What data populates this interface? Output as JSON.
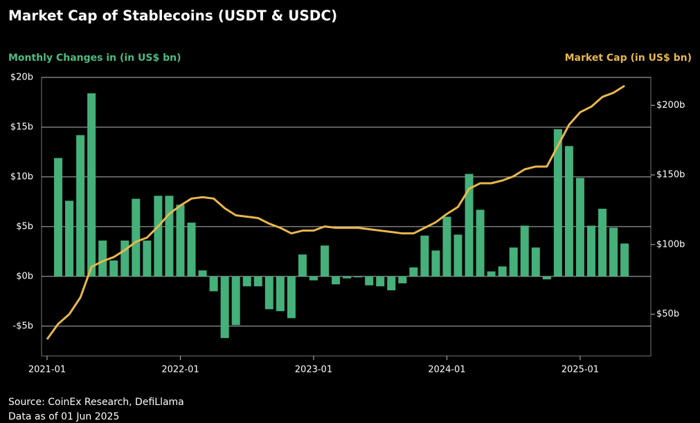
{
  "chart_data": {
    "type": "bar-line",
    "title": "Market Cap of Stablecoins (USDT & USDC)",
    "y_label": "Monthly Changes in (in US$ bn)",
    "y2_label": "Market Cap (in US$ bn)",
    "source": "Source: CoinEx Research, DefiLlama",
    "note": "Data as of 01 Jun 2025",
    "x": [
      "2021-01",
      "2021-02",
      "2021-03",
      "2021-04",
      "2021-05",
      "2021-06",
      "2021-07",
      "2021-08",
      "2021-09",
      "2021-10",
      "2021-11",
      "2021-12",
      "2022-01",
      "2022-02",
      "2022-03",
      "2022-04",
      "2022-05",
      "2022-06",
      "2022-07",
      "2022-08",
      "2022-09",
      "2022-10",
      "2022-11",
      "2022-12",
      "2023-01",
      "2023-02",
      "2023-03",
      "2023-04",
      "2023-05",
      "2023-06",
      "2023-07",
      "2023-08",
      "2023-09",
      "2023-10",
      "2023-11",
      "2023-12",
      "2024-01",
      "2024-02",
      "2024-03",
      "2024-04",
      "2024-05",
      "2024-06",
      "2024-07",
      "2024-08",
      "2024-09",
      "2024-10",
      "2024-11",
      "2024-12",
      "2025-01",
      "2025-02",
      "2025-03",
      "2025-04",
      "2025-05"
    ],
    "xticks": [
      "2021-01",
      "2022-01",
      "2023-01",
      "2024-01",
      "2025-01"
    ],
    "series": [
      {
        "type": "bar",
        "color": "#45b07a",
        "axis": "y",
        "values": [
          null,
          11.9,
          7.6,
          14.2,
          18.4,
          3.6,
          1.6,
          3.6,
          7.8,
          3.6,
          8.1,
          8.1,
          7.2,
          5.4,
          0.6,
          -1.5,
          -6.2,
          -4.9,
          -1.0,
          -1.0,
          -3.3,
          -3.5,
          -4.2,
          2.2,
          -0.4,
          3.1,
          -0.8,
          -0.2,
          -0.1,
          -0.9,
          -1.0,
          -1.4,
          -0.7,
          0.9,
          4.1,
          2.6,
          6.0,
          4.2,
          10.3,
          6.7,
          0.5,
          1.0,
          2.9,
          5.1,
          2.9,
          -0.3,
          14.8,
          13.1,
          9.9,
          5.1,
          6.8,
          4.9,
          3.3
        ]
      },
      {
        "type": "line",
        "color": "#e9b84c",
        "axis": "y2",
        "values": [
          32,
          43,
          50,
          62,
          84,
          88,
          91,
          96,
          102,
          105,
          113,
          122,
          128,
          133,
          134,
          133,
          126,
          121,
          120,
          119,
          115,
          112,
          108,
          110,
          110,
          113,
          112,
          112,
          112,
          111,
          110,
          109,
          108,
          108,
          112,
          116,
          122,
          127,
          140,
          144,
          144,
          146,
          149,
          154,
          156,
          156,
          171,
          186,
          195,
          199,
          206,
          209,
          214
        ]
      }
    ],
    "ylim": [
      -8,
      20
    ],
    "yticks": [
      {
        "value": -5,
        "label": "-$5b"
      },
      {
        "value": 0,
        "label": "$0b"
      },
      {
        "value": 5,
        "label": "$5b"
      },
      {
        "value": 10,
        "label": "$10b"
      },
      {
        "value": 15,
        "label": "$15b"
      },
      {
        "value": 20,
        "label": "$20b"
      }
    ],
    "y2lim": [
      20,
      220
    ],
    "y2ticks": [
      {
        "value": 50,
        "label": "$50b"
      },
      {
        "value": 100,
        "label": "$100b"
      },
      {
        "value": 150,
        "label": "$150b"
      },
      {
        "value": 200,
        "label": "$200b"
      }
    ],
    "grid": true
  }
}
